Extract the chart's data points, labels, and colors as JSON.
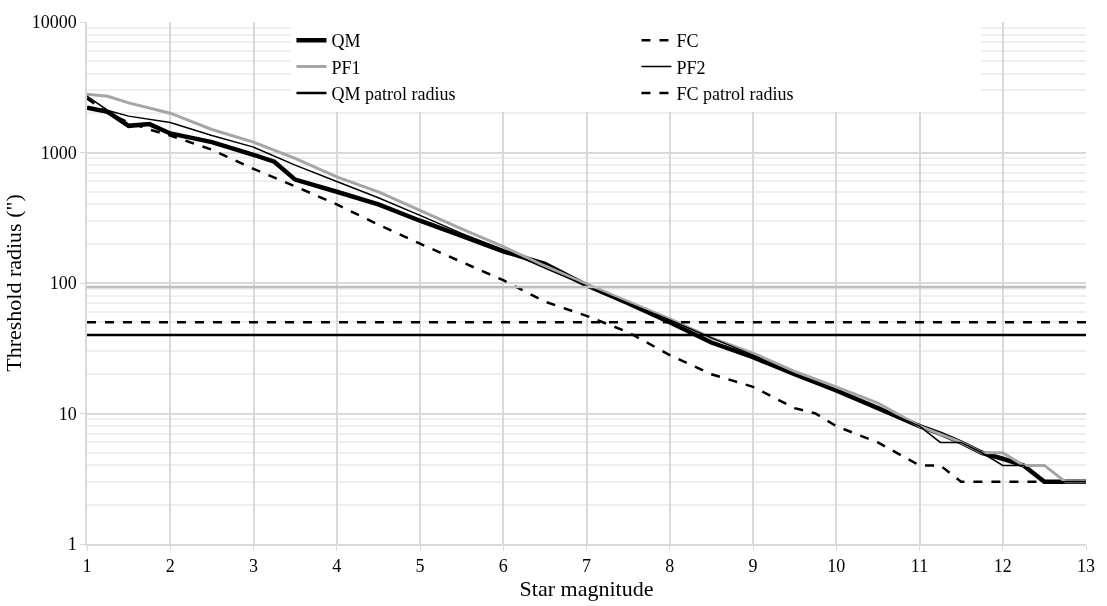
{
  "chart_data": {
    "type": "line",
    "xlabel": "Star magnitude",
    "ylabel": "Threshold radius (\")",
    "log": "y",
    "grid": true,
    "legend": "top",
    "marker": "none",
    "xlim": [
      1,
      13
    ],
    "xticks": [
      1,
      2,
      3,
      4,
      5,
      6,
      7,
      8,
      9,
      10,
      11,
      12,
      13
    ],
    "ylim": [
      1,
      10000
    ],
    "yticks": [
      1,
      10,
      100,
      1000,
      10000
    ],
    "series": [
      {
        "name": "QM",
        "color": "#000000",
        "line_style": "solid",
        "x": [
          1,
          1.25,
          1.5,
          1.75,
          2,
          2.5,
          3,
          3.25,
          3.5,
          4,
          4.5,
          5,
          5.5,
          6,
          6.5,
          7,
          7.5,
          8,
          8.5,
          9,
          9.5,
          10,
          10.5,
          11,
          11.25,
          11.5,
          11.75,
          12,
          12.25,
          12.5,
          13
        ],
        "values": [
          2200,
          2050,
          1600,
          1650,
          1400,
          1200,
          960,
          850,
          620,
          500,
          400,
          300,
          230,
          175,
          140,
          96,
          70,
          50,
          35,
          27,
          20,
          15,
          11,
          8,
          7,
          6,
          5,
          4.5,
          4,
          3,
          3
        ]
      },
      {
        "name": "FC",
        "color": "#000000",
        "line_style": "dashed",
        "x": [
          1,
          1.25,
          1.5,
          1.75,
          2,
          2.5,
          3,
          3.5,
          4,
          4.5,
          5,
          5.5,
          6,
          6.5,
          7,
          7.5,
          8,
          8.5,
          9,
          9.5,
          9.75,
          10,
          10.5,
          11,
          11.25,
          11.5,
          12,
          13
        ],
        "values": [
          2600,
          2000,
          1700,
          1500,
          1350,
          1050,
          750,
          550,
          400,
          280,
          200,
          145,
          105,
          72,
          56,
          42,
          28,
          20,
          16,
          11,
          10,
          8,
          6,
          4,
          4,
          3,
          3,
          3
        ]
      },
      {
        "name": "PF1",
        "color": "#a6a6a6",
        "line_style": "solid",
        "x": [
          1,
          1.25,
          1.5,
          2,
          2.5,
          3,
          3.5,
          4,
          4.5,
          5,
          5.5,
          6,
          6.5,
          7,
          7.5,
          8,
          8.5,
          9,
          9.5,
          10,
          10.5,
          11,
          11.5,
          11.75,
          12,
          12.25,
          12.5,
          12.75,
          13
        ],
        "values": [
          2800,
          2700,
          2400,
          2000,
          1500,
          1200,
          900,
          650,
          500,
          360,
          260,
          190,
          135,
          98,
          72,
          53,
          38,
          29,
          21,
          16,
          12,
          8,
          6,
          5,
          5,
          4,
          4,
          3,
          3
        ]
      },
      {
        "name": "PF2",
        "color": "#000000",
        "line_style": "solid",
        "x": [
          1,
          1.25,
          1.5,
          2,
          2.5,
          3,
          3.5,
          4,
          4.5,
          5,
          5.5,
          6,
          6.5,
          7,
          7.5,
          8,
          8.5,
          9,
          9.5,
          10,
          10.5,
          11,
          11.25,
          11.5,
          11.75,
          12,
          12.25,
          12.5,
          13
        ],
        "values": [
          2700,
          2100,
          1900,
          1700,
          1350,
          1100,
          800,
          600,
          450,
          330,
          240,
          180,
          130,
          95,
          70,
          52,
          38,
          28,
          20,
          15,
          11,
          8,
          6,
          6,
          5,
          4,
          4,
          3,
          3
        ]
      }
    ],
    "ref_lines": [
      {
        "axis": "y",
        "value": 40,
        "label": "QM patrol radius",
        "color": "#000000",
        "line_style": "solid"
      },
      {
        "axis": "y",
        "value": 50,
        "label": "FC patrol radius",
        "color": "#000000",
        "line_style": "dashed"
      },
      {
        "axis": "y",
        "value": 93,
        "color": "#bfbfbf",
        "line_style": "solid"
      }
    ]
  }
}
